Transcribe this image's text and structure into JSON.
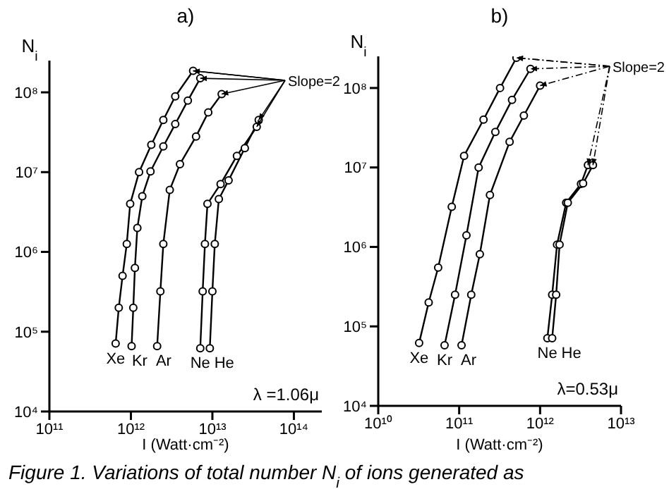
{
  "chart_data": [
    {
      "type": "line",
      "title": "a)",
      "xlabel": "I (Watt·cm⁻²)",
      "ylabel": "N$_{i}$",
      "log": "xy",
      "grid": false,
      "legend": false,
      "marker": "circle",
      "line_style": "solid",
      "xlim": [
        100000000000.0,
        220000000000000.0
      ],
      "ylim": [
        10000.0,
        250000000.0
      ],
      "xticks": [
        {
          "value": 100000000000.0,
          "label": "10¹¹"
        },
        {
          "value": 1000000000000.0,
          "label": "10¹²"
        },
        {
          "value": 10000000000000.0,
          "label": "10¹³"
        },
        {
          "value": 100000000000000.0,
          "label": "10¹⁴"
        }
      ],
      "yticks": [
        {
          "value": 10000.0,
          "label": "10⁴"
        },
        {
          "value": 100000.0,
          "label": "10⁵"
        },
        {
          "value": 1000000.0,
          "label": "10⁶"
        },
        {
          "value": 10000000.0,
          "label": "10⁷"
        },
        {
          "value": 100000000.0,
          "label": "10⁸"
        }
      ],
      "annotations": [
        {
          "text": "Slope=2",
          "x": 5800000000000.0,
          "y": 186000000.0
        },
        "λ =1.06μ",
        "Figure 1. Variations of total number N$_{i}$ of ions generated as"
      ],
      "series": [
        {
          "name": "Xe",
          "color": "#000000",
          "x": [
            650000000000.0,
            710000000000.0,
            790000000000.0,
            890000000000.0,
            980000000000.0,
            1260000000000.0,
            1780000000000.0,
            2500000000000.0,
            3500000000000.0,
            5800000000000.0
          ],
          "values": [
            71000.0,
            200000.0,
            500000.0,
            1260000.0,
            4000000.0,
            10000000.0,
            22000000.0,
            45000000.0,
            89000000.0,
            186000000.0
          ]
        },
        {
          "name": "Kr",
          "color": "#000000",
          "x": [
            1020000000000.0,
            1070000000000.0,
            1120000000000.0,
            1200000000000.0,
            1380000000000.0,
            1740000000000.0,
            2500000000000.0,
            3500000000000.0,
            5000000000000.0,
            7100000000000.0
          ],
          "values": [
            66000.0,
            200000.0,
            630000.0,
            2000000.0,
            5000000.0,
            10200000.0,
            21000000.0,
            40000000.0,
            79000000.0,
            150000000.0
          ]
        },
        {
          "name": "Ar",
          "color": "#000000",
          "x": [
            2100000000000.0,
            2300000000000.0,
            2500000000000.0,
            3000000000000.0,
            4000000000000.0,
            6300000000000.0,
            8900000000000.0,
            13000000000000.0
          ],
          "values": [
            66000.0,
            320000.0,
            1260000.0,
            6000000.0,
            12600000.0,
            28000000.0,
            56000000.0,
            95000000.0
          ]
        },
        {
          "name": "Ne",
          "color": "#000000",
          "x": [
            7100000000000.0,
            7600000000000.0,
            8100000000000.0,
            8700000000000.0,
            12600000000000.0,
            20000000000000.0,
            35000000000000.0
          ],
          "values": [
            62000.0,
            320000.0,
            1260000.0,
            4000000.0,
            7100000.0,
            16000000.0,
            37000000.0
          ]
        },
        {
          "name": "He",
          "color": "#000000",
          "x": [
            9300000000000.0,
            10000000000000.0,
            10700000000000.0,
            12000000000000.0,
            15800000000000.0,
            25000000000000.0,
            37000000000000.0
          ],
          "values": [
            62000.0,
            320000.0,
            1260000.0,
            4600000.0,
            7900000.0,
            20000000.0,
            45000000.0
          ]
        }
      ]
    },
    {
      "type": "line",
      "title": "b)",
      "xlabel": "I (Watt·cm⁻²)",
      "ylabel": "N$_{i}$",
      "log": "xy",
      "grid": false,
      "legend": false,
      "marker": "circle",
      "line_style": "solid",
      "xlim": [
        10000000000.0,
        10000000000000.0
      ],
      "ylim": [
        10000.0,
        250000000.0
      ],
      "xticks": [
        {
          "value": 10000000000.0,
          "label": "10¹⁰"
        },
        {
          "value": 100000000000.0,
          "label": "10¹¹"
        },
        {
          "value": 1000000000000.0,
          "label": "10¹²"
        },
        {
          "value": 10000000000000.0,
          "label": "10¹³"
        }
      ],
      "yticks": [
        {
          "value": 10000.0,
          "label": "10⁴"
        },
        {
          "value": 100000.0,
          "label": "10⁵"
        },
        {
          "value": 1000000.0,
          "label": "10⁶"
        },
        {
          "value": 10000000.0,
          "label": "10⁷"
        },
        {
          "value": 100000000.0,
          "label": "10⁸"
        }
      ],
      "annotations": [
        {
          "text": "Slope=2",
          "x": 510000000000.0,
          "y": 240000000.0
        },
        "λ=0.53μ"
      ],
      "series": [
        {
          "name": "Xe",
          "color": "#000000",
          "x": [
            32000000000.0,
            42000000000.0,
            55000000000.0,
            81000000000.0,
            115000000000.0,
            200000000000.0,
            320000000000.0,
            510000000000.0
          ],
          "values": [
            62000.0,
            200000.0,
            550000.0,
            3200000.0,
            14000000.0,
            40000000.0,
            100000000.0,
            240000000.0
          ]
        },
        {
          "name": "Kr",
          "color": "#000000",
          "x": [
            66000000000.0,
            89000000000.0,
            123000000000.0,
            174000000000.0,
            280000000000.0,
            450000000000.0,
            760000000000.0
          ],
          "values": [
            58000.0,
            250000.0,
            1400000.0,
            10000000.0,
            28000000.0,
            71000000.0,
            174000000.0
          ]
        },
        {
          "name": "Ar",
          "color": "#000000",
          "x": [
            107000000000.0,
            141000000000.0,
            180000000000.0,
            240000000000.0,
            420000000000.0,
            630000000000.0,
            1000000000000.0
          ],
          "values": [
            58000.0,
            250000.0,
            810000.0,
            4500000.0,
            21000000.0,
            45000000.0,
            107000000.0
          ]
        },
        {
          "name": "Ne",
          "color": "#000000",
          "x": [
            1230000000000.0,
            1410000000000.0,
            1620000000000.0,
            2100000000000.0,
            3200000000000.0,
            3900000000000.0
          ],
          "values": [
            71000.0,
            250000.0,
            1070000.0,
            3600000.0,
            6200000.0,
            10700000.0
          ]
        },
        {
          "name": "He",
          "color": "#000000",
          "x": [
            1410000000000.0,
            1580000000000.0,
            1740000000000.0,
            2200000000000.0,
            3400000000000.0,
            4500000000000.0
          ],
          "values": [
            71000.0,
            250000.0,
            1070000.0,
            3600000.0,
            6300000.0,
            10700000.0
          ]
        }
      ]
    }
  ]
}
